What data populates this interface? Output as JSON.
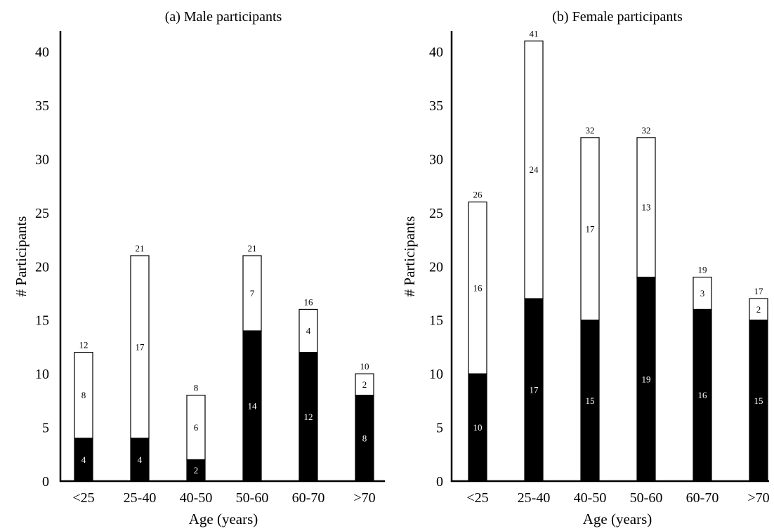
{
  "chart_data": [
    {
      "type": "bar",
      "stacked": true,
      "title": "(a) Male participants",
      "xlabel": "Age (years)",
      "ylabel": "# Participants",
      "ylim": [
        0,
        42
      ],
      "yticks": [
        0,
        5,
        10,
        15,
        20,
        25,
        30,
        35,
        40
      ],
      "categories": [
        "<25",
        "25-40",
        "40-50",
        "50-60",
        "60-70",
        ">70"
      ],
      "series": [
        {
          "values": [
            4,
            4,
            2,
            14,
            12,
            8
          ],
          "color": "#000000",
          "label_color": "#ffffff"
        },
        {
          "values": [
            8,
            17,
            6,
            7,
            4,
            2
          ],
          "color": "#ffffff",
          "label_color": "#000000"
        }
      ],
      "totals": [
        12,
        21,
        8,
        21,
        16,
        10
      ]
    },
    {
      "type": "bar",
      "stacked": true,
      "title": "(b) Female participants",
      "xlabel": "Age (years)",
      "ylabel": "# Participants",
      "ylim": [
        0,
        42
      ],
      "yticks": [
        0,
        5,
        10,
        15,
        20,
        25,
        30,
        35,
        40
      ],
      "categories": [
        "<25",
        "25-40",
        "40-50",
        "50-60",
        "60-70",
        ">70"
      ],
      "series": [
        {
          "values": [
            10,
            17,
            15,
            19,
            16,
            15
          ],
          "color": "#000000",
          "label_color": "#ffffff"
        },
        {
          "values": [
            16,
            24,
            17,
            13,
            3,
            2
          ],
          "color": "#ffffff",
          "label_color": "#000000"
        }
      ],
      "totals": [
        26,
        41,
        32,
        32,
        19,
        17
      ]
    }
  ]
}
